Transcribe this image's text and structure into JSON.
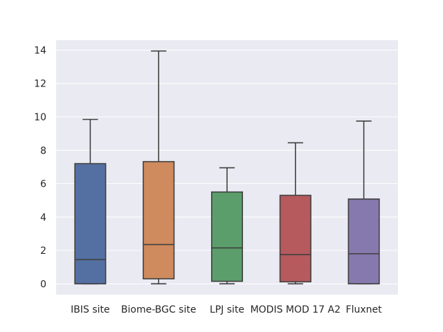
{
  "chart_data": {
    "type": "box",
    "categories": [
      "IBIS site",
      "Biome-BGC site",
      "LPJ site",
      "MODIS MOD 17 A2",
      "Fluxnet"
    ],
    "boxes": [
      {
        "whisker_low": 0.0,
        "q1": 0.0,
        "median": 1.45,
        "q3": 7.2,
        "whisker_high": 9.85,
        "color": "#5470a2"
      },
      {
        "whisker_low": 0.0,
        "q1": 0.3,
        "median": 2.35,
        "q3": 7.32,
        "whisker_high": 13.95,
        "color": "#cf8a5e"
      },
      {
        "whisker_low": 0.0,
        "q1": 0.15,
        "median": 2.15,
        "q3": 5.5,
        "whisker_high": 6.95,
        "color": "#5b9e6b"
      },
      {
        "whisker_low": 0.0,
        "q1": 0.12,
        "median": 1.75,
        "q3": 5.3,
        "whisker_high": 8.45,
        "color": "#b65a5d"
      },
      {
        "whisker_low": 0.0,
        "q1": 0.0,
        "median": 1.8,
        "q3": 5.08,
        "whisker_high": 9.75,
        "color": "#8679ae"
      }
    ],
    "yticks": [
      "0",
      "2",
      "4",
      "6",
      "8",
      "10",
      "12",
      "14"
    ],
    "ylim": [
      -0.65,
      14.6
    ],
    "grid": true,
    "colors": {
      "background": "#eaeaf2",
      "grid": "#ffffff",
      "line": "#3f3f3f"
    }
  }
}
